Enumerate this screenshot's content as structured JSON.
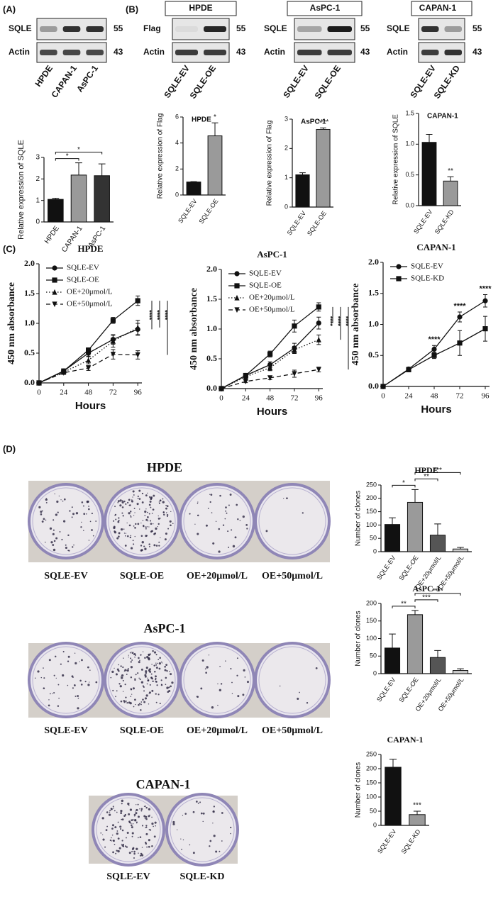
{
  "panel_labels": [
    "(A)",
    "(B)",
    "(C)",
    "(D)"
  ],
  "blots": [
    {
      "lanes": [
        "HPDE",
        "CAPAN-1",
        "AsPC-1"
      ],
      "rows": [
        {
          "label": "SQLE",
          "size": 55
        },
        {
          "label": "Actin",
          "size": 43
        }
      ]
    },
    {
      "title": "HPDE",
      "lanes": [
        "SQLE-EV",
        "SQLE-OE"
      ],
      "rows": [
        {
          "label": "Flag",
          "size": 55
        },
        {
          "label": "Actin",
          "size": 43
        }
      ]
    },
    {
      "title": "AsPC-1",
      "lanes": [
        "SQLE-EV",
        "SQLE-OE"
      ],
      "rows": [
        {
          "label": "SQLE",
          "size": 55
        },
        {
          "label": "Actin",
          "size": 43
        }
      ]
    },
    {
      "title": "CAPAN-1",
      "lanes": [
        "SQLE-EV",
        "SQLE-KD"
      ],
      "rows": [
        {
          "label": "SQLE",
          "size": 55
        },
        {
          "label": "Actin",
          "size": 43
        }
      ]
    }
  ],
  "chart_data": [
    {
      "type": "bar",
      "ylabel": "Relative expression of SQLE",
      "categories": [
        "HPDE",
        "CAPAN-1",
        "AsPC-1"
      ],
      "values": [
        1.05,
        2.18,
        2.15
      ],
      "errors": [
        0.05,
        0.57,
        0.55
      ],
      "colors": [
        "#111111",
        "#9a9a9a",
        "#333333"
      ],
      "ylim": [
        0,
        3
      ],
      "yticks": [
        0,
        1,
        2,
        3
      ],
      "significance": [
        {
          "text": "*",
          "from": 0,
          "to": 1
        },
        {
          "text": "*",
          "from": 0,
          "to": 2
        }
      ]
    },
    {
      "type": "bar",
      "title": "HPDE",
      "ylabel": "Relative expression of Flag",
      "categories": [
        "SQLE-EV",
        "SQLE-OE"
      ],
      "values": [
        1.0,
        4.55
      ],
      "errors": [
        0.03,
        1.0
      ],
      "colors": [
        "#111111",
        "#9a9a9a"
      ],
      "ylim": [
        0,
        6
      ],
      "yticks": [
        0,
        2,
        4,
        6
      ],
      "significance": [
        {
          "text": "*",
          "at": 1
        }
      ]
    },
    {
      "type": "bar",
      "title": "AsPC-1",
      "ylabel": "Relative expression of Flag",
      "categories": [
        "SQLE-EV",
        "SQLE-OE"
      ],
      "values": [
        1.1,
        2.65
      ],
      "errors": [
        0.07,
        0.05
      ],
      "colors": [
        "#111111",
        "#9a9a9a"
      ],
      "ylim": [
        0,
        3
      ],
      "yticks": [
        0,
        1,
        2,
        3
      ],
      "significance": [
        {
          "text": "****",
          "at": 1
        }
      ]
    },
    {
      "type": "bar",
      "title": "CAPAN-1",
      "ylabel": "Relative expression of SQLE",
      "categories": [
        "SQLE-EV",
        "SQLE-KD"
      ],
      "values": [
        1.03,
        0.4
      ],
      "errors": [
        0.13,
        0.07
      ],
      "colors": [
        "#111111",
        "#9a9a9a"
      ],
      "ylim": [
        0,
        1.5
      ],
      "yticks": [
        {
          "value": 0,
          "label": "0.0"
        },
        0.5,
        {
          "value": 1,
          "label": "1.0"
        },
        1.5
      ],
      "significance": [
        {
          "text": "**",
          "at": 1
        }
      ]
    },
    {
      "type": "line",
      "title": "HPDE",
      "xlabel": "Hours",
      "ylabel": "450 nm absorbance",
      "x": [
        0,
        24,
        48,
        72,
        96
      ],
      "xlim": [
        0,
        100
      ],
      "xticks": [
        0,
        24,
        48,
        72,
        96
      ],
      "ylim": [
        0,
        2
      ],
      "yticks": [
        {
          "value": 0,
          "label": "0.0"
        },
        0.5,
        {
          "value": 1,
          "label": "1.0"
        },
        1.5,
        {
          "value": 2,
          "label": "2.0"
        }
      ],
      "series": [
        {
          "name": "SQLE-EV",
          "marker": "circle",
          "dash": "solid",
          "values": [
            0,
            0.2,
            0.5,
            0.73,
            0.9
          ],
          "errors": [
            0.01,
            0.02,
            0.05,
            0.08,
            0.1
          ]
        },
        {
          "name": "SQLE-OE",
          "marker": "square",
          "dash": "solid",
          "values": [
            0,
            0.2,
            0.55,
            1.05,
            1.38
          ],
          "errors": [
            0.01,
            0.02,
            0.04,
            0.05,
            0.08
          ]
        },
        {
          "name": "OE+20μmol/L",
          "marker": "triangle",
          "dash": "dotted",
          "values": [
            0,
            0.18,
            0.38,
            0.7,
            0.93
          ],
          "errors": [
            0.01,
            0.02,
            0.06,
            0.1,
            0.12
          ]
        },
        {
          "name": "OE+50μmol/L",
          "marker": "triangle-down",
          "dash": "dashed",
          "values": [
            0,
            0.17,
            0.25,
            0.48,
            0.47
          ],
          "errors": [
            0.01,
            0.02,
            0.04,
            0.08,
            0.07
          ]
        }
      ],
      "significance": [
        {
          "text": "****",
          "from": 1,
          "to": 0
        },
        {
          "text": "****",
          "from": 1,
          "to": 2
        },
        {
          "text": "****",
          "from": 1,
          "to": 3
        }
      ]
    },
    {
      "type": "line",
      "title": "AsPC-1",
      "xlabel": "Hours",
      "ylabel": "450 nm absorbance",
      "x": [
        0,
        24,
        48,
        72,
        96
      ],
      "xlim": [
        0,
        100
      ],
      "xticks": [
        0,
        24,
        48,
        72,
        96
      ],
      "ylim": [
        0,
        2
      ],
      "yticks": [
        {
          "value": 0,
          "label": "0.0"
        },
        0.5,
        {
          "value": 1,
          "label": "1.0"
        },
        1.5,
        {
          "value": 2,
          "label": "2.0"
        }
      ],
      "series": [
        {
          "name": "SQLE-EV",
          "marker": "circle",
          "dash": "solid",
          "values": [
            0,
            0.22,
            0.4,
            0.68,
            1.1
          ],
          "errors": [
            0.01,
            0.02,
            0.05,
            0.08,
            0.1
          ]
        },
        {
          "name": "SQLE-OE",
          "marker": "square",
          "dash": "solid",
          "values": [
            0,
            0.22,
            0.58,
            1.05,
            1.37
          ],
          "errors": [
            0.01,
            0.02,
            0.05,
            0.1,
            0.07
          ]
        },
        {
          "name": "OE+20μmol/L",
          "marker": "triangle",
          "dash": "dotted",
          "values": [
            0,
            0.2,
            0.35,
            0.65,
            0.82
          ],
          "errors": [
            0.01,
            0.02,
            0.05,
            0.06,
            0.08
          ]
        },
        {
          "name": "OE+50μmol/L",
          "marker": "triangle-down",
          "dash": "dashed",
          "values": [
            0,
            0.12,
            0.18,
            0.25,
            0.32
          ],
          "errors": [
            0.01,
            0.02,
            0.03,
            0.06,
            0.04
          ]
        }
      ],
      "significance": [
        {
          "text": "****",
          "from": 1,
          "to": 0
        },
        {
          "text": "****",
          "from": 1,
          "to": 2
        },
        {
          "text": "****",
          "from": 1,
          "to": 3
        }
      ]
    },
    {
      "type": "line",
      "title": "CAPAN-1",
      "xlabel": "Hours",
      "ylabel": "450 nm absorbance",
      "x": [
        0,
        24,
        48,
        72,
        96
      ],
      "xlim": [
        0,
        100
      ],
      "xticks": [
        0,
        24,
        48,
        72,
        96
      ],
      "ylim": [
        0,
        2
      ],
      "yticks": [
        {
          "value": 0,
          "label": "0.0"
        },
        0.5,
        {
          "value": 1,
          "label": "1.0"
        },
        1.5,
        {
          "value": 2,
          "label": "2.0"
        }
      ],
      "series": [
        {
          "name": "SQLE-EV",
          "marker": "circle",
          "dash": "solid",
          "values": [
            0,
            0.28,
            0.6,
            1.12,
            1.38
          ],
          "errors": [
            0.01,
            0.03,
            0.06,
            0.08,
            0.1
          ]
        },
        {
          "name": "SQLE-KD",
          "marker": "square",
          "dash": "solid",
          "values": [
            0,
            0.27,
            0.5,
            0.7,
            0.93
          ],
          "errors": [
            0.01,
            0.03,
            0.05,
            0.2,
            0.2
          ]
        }
      ],
      "significance": [
        {
          "text": "****",
          "at": 2
        },
        {
          "text": "****",
          "at": 3
        },
        {
          "text": "****",
          "at": 4
        }
      ]
    },
    {
      "type": "bar",
      "title": "HPDE",
      "ylabel": "Number of clones",
      "categories": [
        "SQLE-EV",
        "SQLE-OE",
        "OE+20μmol/L",
        "OE+50μmol/L"
      ],
      "values": [
        102,
        185,
        62,
        10
      ],
      "errors": [
        25,
        48,
        42,
        6
      ],
      "colors": [
        "#111111",
        "#9a9a9a",
        "#555555",
        "#cccccc"
      ],
      "ylim": [
        0,
        250
      ],
      "yticks": [
        0,
        50,
        100,
        150,
        200,
        250
      ],
      "significance": [
        {
          "text": "*",
          "from": 0,
          "to": 1
        },
        {
          "text": "**",
          "from": 1,
          "to": 2
        },
        {
          "text": "***",
          "from": 1,
          "to": 3
        }
      ]
    },
    {
      "type": "bar",
      "title": "AsPC-1",
      "ylabel": "Number of clones",
      "categories": [
        "SQLE-EV",
        "SQLE-OE",
        "OE+20μmol/L",
        "OE+50μmol/L"
      ],
      "values": [
        73,
        168,
        46,
        9
      ],
      "errors": [
        40,
        12,
        20,
        5
      ],
      "colors": [
        "#111111",
        "#9a9a9a",
        "#555555",
        "#cccccc"
      ],
      "ylim": [
        0,
        200
      ],
      "yticks": [
        0,
        50,
        100,
        150,
        200
      ],
      "significance": [
        {
          "text": "**",
          "from": 0,
          "to": 1
        },
        {
          "text": "***",
          "from": 1,
          "to": 2
        },
        {
          "text": "****",
          "from": 1,
          "to": 3
        }
      ]
    },
    {
      "type": "bar",
      "title": "CAPAN-1",
      "ylabel": "Number of clones",
      "categories": [
        "SQLE-EV",
        "SQLE-KD"
      ],
      "values": [
        205,
        38
      ],
      "errors": [
        28,
        12
      ],
      "colors": [
        "#111111",
        "#9a9a9a"
      ],
      "ylim": [
        0,
        250
      ],
      "yticks": [
        0,
        50,
        100,
        150,
        200,
        250
      ],
      "significance": [
        {
          "text": "***",
          "at": 1
        }
      ]
    }
  ],
  "colonies": [
    {
      "title": "HPDE",
      "captions": [
        "SQLE-EV",
        "SQLE-OE",
        "OE+20μmol/L",
        "OE+50μmol/L"
      ]
    },
    {
      "title": "AsPC-1",
      "captions": [
        "SQLE-EV",
        "SQLE-OE",
        "OE+20μmol/L",
        "OE+50μmol/L"
      ]
    },
    {
      "title": "CAPAN-1",
      "captions": [
        "SQLE-EV",
        "SQLE-KD"
      ]
    }
  ]
}
